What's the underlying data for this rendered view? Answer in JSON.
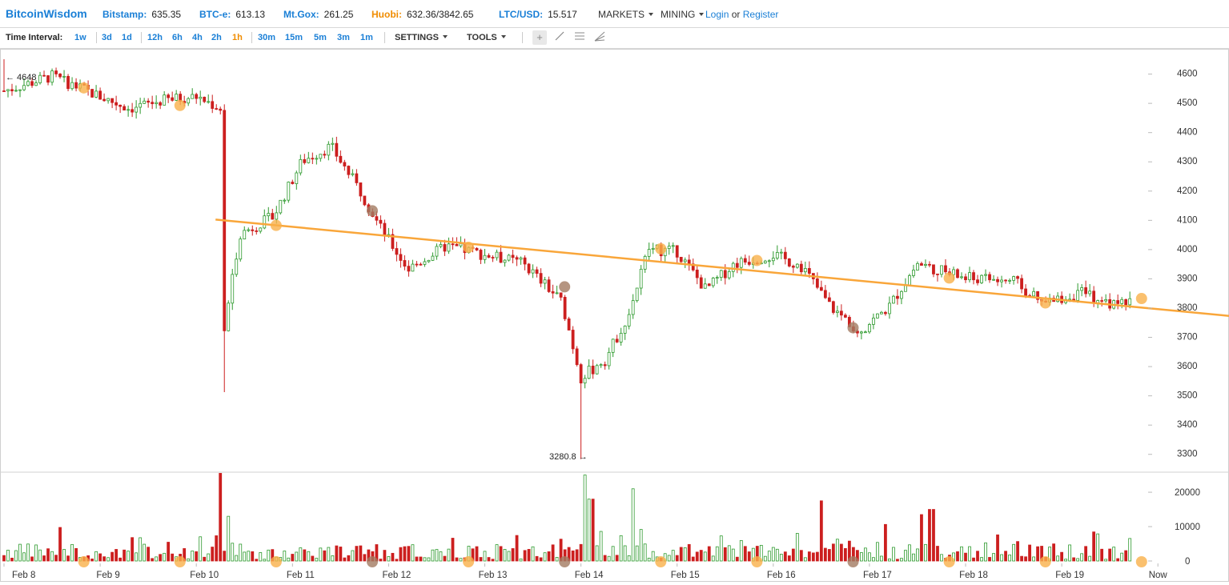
{
  "header": {
    "brand": "BitcoinWisdom",
    "tickers": [
      {
        "label": "Bitstamp:",
        "value": "635.35"
      },
      {
        "label": "BTC-e:",
        "value": "613.13"
      },
      {
        "label": "Mt.Gox:",
        "value": "261.25"
      },
      {
        "label": "Huobi:",
        "value": "632.36/3842.65"
      },
      {
        "label": "LTC/USD:",
        "value": "15.517"
      }
    ],
    "markets_label": "MARKETS",
    "mining_label": "MINING",
    "login_label": "Login",
    "or_label": "or",
    "register_label": "Register"
  },
  "toolbar": {
    "time_interval_label": "Time Interval:",
    "intervals": [
      "1w",
      "3d",
      "1d",
      "12h",
      "6h",
      "4h",
      "2h",
      "1h",
      "30m",
      "15m",
      "5m",
      "3m",
      "1m"
    ],
    "active_interval": "1h",
    "settings_label": "SETTINGS",
    "tools_label": "TOOLS",
    "tool_icons": [
      "crosshair-icon",
      "line-tool-icon",
      "fib-levels-icon",
      "fan-tool-icon"
    ]
  },
  "colors": {
    "up": "#2e9a2e",
    "down": "#cc1f1f",
    "trendline": "#f9a63a",
    "marker_orange": "#f9b04a",
    "marker_brown": "#a27a62",
    "accent": "#1a7fd6",
    "active": "#f08c00"
  },
  "chart_data": {
    "type": "candlestick",
    "title": "",
    "x_tick_labels": [
      "Feb 8",
      "Feb 9",
      "Feb 10",
      "Feb 11",
      "Feb 12",
      "Feb 13",
      "Feb 14",
      "Feb 15",
      "Feb 16",
      "Feb 17",
      "Feb 18",
      "Feb 19",
      "Now"
    ],
    "price_axis": {
      "ticks": [
        4600,
        4500,
        4400,
        4300,
        4200,
        4100,
        4000,
        3900,
        3800,
        3700,
        3600,
        3500,
        3400,
        3300
      ],
      "ylim": [
        3250,
        4670
      ]
    },
    "volume_axis": {
      "ticks": [
        20000,
        10000,
        0
      ],
      "ylim": [
        0,
        27000
      ]
    },
    "annotations": {
      "high_label": "← 4648",
      "low_label": "3280.8 →",
      "high": 4648,
      "low": 3280.8
    },
    "trendline": {
      "from": {
        "day": 2.2,
        "price": 4100
      },
      "to": {
        "day": 11.8,
        "price": 3800
      }
    },
    "price_path": [
      {
        "day": 0,
        "price": 4540
      },
      {
        "day": 0.5,
        "price": 4590
      },
      {
        "day": 1.0,
        "price": 4520
      },
      {
        "day": 1.3,
        "price": 4480
      },
      {
        "day": 1.7,
        "price": 4510
      },
      {
        "day": 2.0,
        "price": 4520
      },
      {
        "day": 2.25,
        "price": 4480
      },
      {
        "day": 2.28,
        "price": 3700
      },
      {
        "day": 2.45,
        "price": 4050
      },
      {
        "day": 2.8,
        "price": 4110
      },
      {
        "day": 3.1,
        "price": 4300
      },
      {
        "day": 3.4,
        "price": 4350
      },
      {
        "day": 3.7,
        "price": 4200
      },
      {
        "day": 3.9,
        "price": 4080
      },
      {
        "day": 4.2,
        "price": 3930
      },
      {
        "day": 4.6,
        "price": 4010
      },
      {
        "day": 5.0,
        "price": 3980
      },
      {
        "day": 5.4,
        "price": 3950
      },
      {
        "day": 5.8,
        "price": 3820
      },
      {
        "day": 6.0,
        "price": 3560
      },
      {
        "day": 6.25,
        "price": 3620
      },
      {
        "day": 6.5,
        "price": 3780
      },
      {
        "day": 6.7,
        "price": 4000
      },
      {
        "day": 7.0,
        "price": 3990
      },
      {
        "day": 7.3,
        "price": 3860
      },
      {
        "day": 7.6,
        "price": 3950
      },
      {
        "day": 8.0,
        "price": 3980
      },
      {
        "day": 8.3,
        "price": 3940
      },
      {
        "day": 8.6,
        "price": 3800
      },
      {
        "day": 8.9,
        "price": 3720
      },
      {
        "day": 9.2,
        "price": 3800
      },
      {
        "day": 9.5,
        "price": 3950
      },
      {
        "day": 10.0,
        "price": 3900
      },
      {
        "day": 10.5,
        "price": 3890
      },
      {
        "day": 10.8,
        "price": 3810
      },
      {
        "day": 11.2,
        "price": 3850
      },
      {
        "day": 11.5,
        "price": 3810
      },
      {
        "day": 11.7,
        "price": 3820
      }
    ],
    "markers": [
      {
        "day": 0.83,
        "price": 4550,
        "kind": "orange"
      },
      {
        "day": 1.83,
        "price": 4490,
        "kind": "orange"
      },
      {
        "day": 2.83,
        "price": 4080,
        "kind": "orange"
      },
      {
        "day": 3.83,
        "price": 4130,
        "kind": "brown"
      },
      {
        "day": 4.83,
        "price": 4005,
        "kind": "orange"
      },
      {
        "day": 5.83,
        "price": 3870,
        "kind": "brown"
      },
      {
        "day": 6.83,
        "price": 4000,
        "kind": "orange"
      },
      {
        "day": 7.83,
        "price": 3960,
        "kind": "orange"
      },
      {
        "day": 8.83,
        "price": 3730,
        "kind": "brown"
      },
      {
        "day": 9.83,
        "price": 3900,
        "kind": "orange"
      },
      {
        "day": 10.83,
        "price": 3815,
        "kind": "orange"
      },
      {
        "day": 11.83,
        "price": 3830,
        "kind": "orange"
      }
    ],
    "volume_spikes": [
      {
        "day": 2.25,
        "volume": 25500
      },
      {
        "day": 2.33,
        "volume": 13000
      },
      {
        "day": 6.05,
        "volume": 25000
      },
      {
        "day": 6.1,
        "volume": 18000
      },
      {
        "day": 6.55,
        "volume": 21000
      },
      {
        "day": 8.5,
        "volume": 17500
      },
      {
        "day": 9.65,
        "volume": 15000
      },
      {
        "day": 9.55,
        "volume": 13500
      }
    ],
    "grid": false,
    "legend": "none"
  }
}
